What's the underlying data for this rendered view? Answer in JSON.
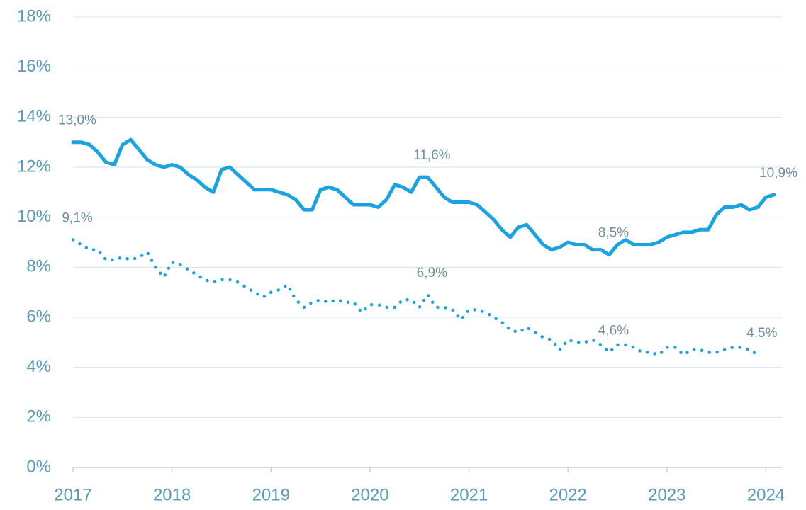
{
  "chart_data": {
    "type": "line",
    "x": [
      2017.0,
      2017.083,
      2017.167,
      2017.25,
      2017.333,
      2017.417,
      2017.5,
      2017.583,
      2017.667,
      2017.75,
      2017.833,
      2017.917,
      2018.0,
      2018.083,
      2018.167,
      2018.25,
      2018.333,
      2018.417,
      2018.5,
      2018.583,
      2018.667,
      2018.75,
      2018.833,
      2018.917,
      2019.0,
      2019.083,
      2019.167,
      2019.25,
      2019.333,
      2019.417,
      2019.5,
      2019.583,
      2019.667,
      2019.75,
      2019.833,
      2019.917,
      2020.0,
      2020.083,
      2020.167,
      2020.25,
      2020.333,
      2020.417,
      2020.5,
      2020.583,
      2020.667,
      2020.75,
      2020.833,
      2020.917,
      2021.0,
      2021.083,
      2021.167,
      2021.25,
      2021.333,
      2021.417,
      2021.5,
      2021.583,
      2021.667,
      2021.75,
      2021.833,
      2021.917,
      2022.0,
      2022.083,
      2022.167,
      2022.25,
      2022.333,
      2022.417,
      2022.5,
      2022.583,
      2022.667,
      2022.75,
      2022.833,
      2022.917,
      2023.0,
      2023.083,
      2023.167,
      2023.25,
      2023.333,
      2023.417,
      2023.5,
      2023.583,
      2023.667,
      2023.75,
      2023.833,
      2023.917,
      2024.0,
      2024.083
    ],
    "series": [
      {
        "color": "#1aa3e0",
        "style": "solid",
        "values": [
          13.0,
          13.0,
          12.9,
          12.6,
          12.2,
          12.1,
          12.9,
          13.1,
          12.7,
          12.3,
          12.1,
          12.0,
          12.1,
          12.0,
          11.7,
          11.5,
          11.2,
          11.0,
          11.9,
          12.0,
          11.7,
          11.4,
          11.1,
          11.1,
          11.1,
          11.0,
          10.9,
          10.7,
          10.3,
          10.3,
          11.1,
          11.2,
          11.1,
          10.8,
          10.5,
          10.5,
          10.5,
          10.4,
          10.7,
          11.3,
          11.2,
          11.0,
          11.6,
          11.6,
          11.2,
          10.8,
          10.6,
          10.6,
          10.6,
          10.5,
          10.2,
          9.9,
          9.5,
          9.2,
          9.6,
          9.7,
          9.3,
          8.9,
          8.7,
          8.8,
          9.0,
          8.9,
          8.9,
          8.7,
          8.7,
          8.5,
          8.9,
          9.1,
          8.9,
          8.9,
          8.9,
          9.0,
          9.2,
          9.3,
          9.4,
          9.4,
          9.5,
          9.5,
          10.1,
          10.4,
          10.4,
          10.5,
          10.3,
          10.4,
          10.8,
          10.9
        ],
        "value_labels": [
          "13,0%",
          null,
          null,
          null,
          null,
          null,
          null,
          null,
          null,
          null,
          null,
          null,
          null,
          null,
          null,
          null,
          null,
          null,
          null,
          null,
          null,
          null,
          null,
          null,
          null,
          null,
          null,
          null,
          null,
          null,
          null,
          null,
          null,
          null,
          null,
          null,
          null,
          null,
          null,
          null,
          null,
          null,
          null,
          "11,6%",
          null,
          null,
          null,
          null,
          null,
          null,
          null,
          null,
          null,
          null,
          null,
          null,
          null,
          null,
          null,
          null,
          null,
          null,
          null,
          null,
          null,
          "8,5%",
          null,
          null,
          null,
          null,
          null,
          null,
          null,
          null,
          null,
          null,
          null,
          null,
          null,
          null,
          null,
          null,
          null,
          null,
          null,
          "10,9%"
        ]
      },
      {
        "color": "#1aa3e0",
        "style": "dotted",
        "values": [
          9.1,
          8.9,
          8.7,
          8.7,
          8.3,
          8.3,
          8.4,
          8.3,
          8.4,
          8.6,
          8.0,
          7.6,
          8.2,
          8.1,
          7.9,
          7.7,
          7.5,
          7.4,
          7.5,
          7.5,
          7.4,
          7.2,
          7.0,
          6.8,
          7.0,
          7.1,
          7.3,
          6.7,
          6.4,
          6.6,
          6.7,
          6.6,
          6.7,
          6.6,
          6.6,
          6.2,
          6.5,
          6.5,
          6.4,
          6.4,
          6.7,
          6.7,
          6.4,
          6.9,
          6.4,
          6.4,
          6.3,
          5.9,
          6.3,
          6.3,
          6.2,
          6.0,
          5.8,
          5.5,
          5.4,
          5.6,
          5.4,
          5.2,
          5.1,
          4.7,
          5.1,
          5.0,
          5.0,
          5.1,
          4.9,
          4.6,
          4.9,
          4.9,
          4.8,
          4.6,
          4.6,
          4.5,
          4.8,
          4.8,
          4.5,
          4.7,
          4.7,
          4.6,
          4.6,
          4.7,
          4.8,
          4.8,
          4.7,
          4.5,
          null,
          null
        ],
        "value_labels": [
          "9,1%",
          null,
          null,
          null,
          null,
          null,
          null,
          null,
          null,
          null,
          null,
          null,
          null,
          null,
          null,
          null,
          null,
          null,
          null,
          null,
          null,
          null,
          null,
          null,
          null,
          null,
          null,
          null,
          null,
          null,
          null,
          null,
          null,
          null,
          null,
          null,
          null,
          null,
          null,
          null,
          null,
          null,
          null,
          "6,9%",
          null,
          null,
          null,
          null,
          null,
          null,
          null,
          null,
          null,
          null,
          null,
          null,
          null,
          null,
          null,
          null,
          null,
          null,
          null,
          null,
          null,
          "4,6%",
          null,
          null,
          null,
          null,
          null,
          null,
          null,
          null,
          null,
          null,
          null,
          null,
          null,
          null,
          null,
          null,
          null,
          "4,5%",
          null,
          null
        ]
      }
    ],
    "xlim": [
      2017,
      2024.14
    ],
    "xticks": [
      2017,
      2018,
      2019,
      2020,
      2021,
      2022,
      2023,
      2024
    ],
    "ylim": [
      0,
      18
    ],
    "yticks": [
      {
        "value": 0,
        "label": "0%"
      },
      {
        "value": 2,
        "label": "2%"
      },
      {
        "value": 4,
        "label": "4%"
      },
      {
        "value": 6,
        "label": "6%"
      },
      {
        "value": 8,
        "label": "8%"
      },
      {
        "value": 10,
        "label": "10%"
      },
      {
        "value": 12,
        "label": "12%"
      },
      {
        "value": 14,
        "label": "14%"
      },
      {
        "value": 16,
        "label": "16%"
      },
      {
        "value": 18,
        "label": "18%"
      }
    ],
    "grid": true
  }
}
